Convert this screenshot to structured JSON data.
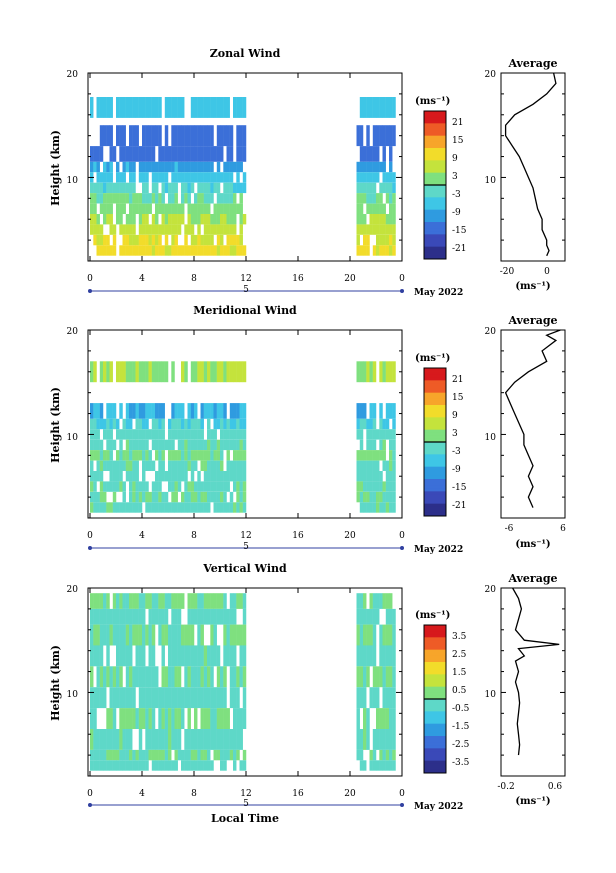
{
  "colors": {
    "scale": [
      "#2c2f8a",
      "#3a49b8",
      "#3b6fd8",
      "#2f9be0",
      "#3ec6e6",
      "#5ed8c8",
      "#7fe07f",
      "#c4e33c",
      "#f2dc2a",
      "#f7a52a",
      "#ee5b26",
      "#d7191c"
    ],
    "axis": "#000000",
    "timeline": "#3040a0"
  },
  "panels": [
    {
      "title": "Zonal Wind",
      "ylabel": "Height (km)",
      "y_ticks": [
        "20",
        "10"
      ],
      "x_ticks": [
        "0",
        "4",
        "8",
        "12",
        "16",
        "20",
        "0"
      ],
      "day_label": "5",
      "date_label": "May 2022",
      "colorbar_unit": "(ms⁻¹)",
      "colorbar_ticks": [
        "21",
        "15",
        "9",
        "3",
        "-3",
        "-9",
        "-15",
        "-21"
      ],
      "avg_title": "Average",
      "avg_y_ticks": [
        "20",
        "10"
      ],
      "avg_x_ticks": [
        "-20",
        "0"
      ],
      "avg_unit": "(ms⁻¹)"
    },
    {
      "title": "Meridional Wind",
      "ylabel": "Height (km)",
      "y_ticks": [
        "20",
        "10"
      ],
      "x_ticks": [
        "0",
        "4",
        "8",
        "12",
        "16",
        "20",
        "0"
      ],
      "day_label": "5",
      "date_label": "May 2022",
      "colorbar_unit": "(ms⁻¹)",
      "colorbar_ticks": [
        "21",
        "15",
        "9",
        "3",
        "-3",
        "-9",
        "-15",
        "-21"
      ],
      "avg_title": "Average",
      "avg_y_ticks": [
        "20",
        "10"
      ],
      "avg_x_ticks": [
        "-6",
        "6"
      ],
      "avg_unit": "(ms⁻¹)"
    },
    {
      "title": "Vertical Wind",
      "ylabel": "Height (km)",
      "y_ticks": [
        "20",
        "10"
      ],
      "x_ticks": [
        "0",
        "4",
        "8",
        "12",
        "16",
        "20",
        "0"
      ],
      "day_label": "5",
      "date_label": "May 2022",
      "colorbar_unit": "(ms⁻¹)",
      "colorbar_ticks": [
        "3.5",
        "2.5",
        "1.5",
        "0.5",
        "-0.5",
        "-1.5",
        "-2.5",
        "-3.5"
      ],
      "avg_title": "Average",
      "avg_y_ticks": [
        "20",
        "10"
      ],
      "avg_x_ticks": [
        "-0.2",
        "0.6"
      ],
      "avg_unit": "(ms⁻¹)",
      "xlabel": "Local Time"
    }
  ],
  "chart_data": [
    {
      "type": "heatmap",
      "title": "Zonal Wind",
      "ylabel": "Height (km)",
      "x_range_hours": [
        0,
        24
      ],
      "y_range_km": [
        2,
        20
      ],
      "data_time_blocks_hours": [
        [
          0,
          12
        ],
        [
          20.5,
          23.5
        ]
      ],
      "colorbar_range": [
        -24,
        24
      ],
      "rows": [
        {
          "height": 17.2,
          "v": -6
        },
        {
          "height": 14.5,
          "v": -14
        },
        {
          "height": 12.5,
          "v": -14
        },
        {
          "height": 11.0,
          "v": -9
        },
        {
          "height": 10.0,
          "v": -6
        },
        {
          "height": 9.0,
          "v": -3
        },
        {
          "height": 8.0,
          "v": 0
        },
        {
          "height": 7.0,
          "v": 2
        },
        {
          "height": 6.0,
          "v": 4
        },
        {
          "height": 5.0,
          "v": 6
        },
        {
          "height": 4.0,
          "v": 8
        },
        {
          "height": 3.0,
          "v": 9
        }
      ]
    },
    {
      "type": "line",
      "title": "Average",
      "xlabel": "(ms⁻¹)",
      "xlim": [
        -20,
        8
      ],
      "ylim": [
        2,
        20
      ],
      "x": [
        3,
        4,
        0,
        -6,
        -14,
        -18,
        -18,
        -15,
        -12,
        -10,
        -8,
        -6,
        -5,
        -4,
        -2,
        -2,
        0,
        0,
        1,
        0
      ],
      "y": [
        20,
        19,
        18,
        17,
        16,
        15,
        14,
        13,
        12,
        11,
        10,
        9,
        8,
        7,
        6,
        5,
        4,
        3.5,
        3,
        2.5
      ]
    },
    {
      "type": "heatmap",
      "title": "Meridional Wind",
      "ylabel": "Height (km)",
      "x_range_hours": [
        0,
        24
      ],
      "y_range_km": [
        2,
        20
      ],
      "data_time_blocks_hours": [
        [
          0,
          12
        ],
        [
          20.5,
          23.5
        ]
      ],
      "colorbar_range": [
        -24,
        24
      ],
      "rows": [
        {
          "height": 16.5,
          "v": 4
        },
        {
          "height": 12.5,
          "v": -8
        },
        {
          "height": 11.0,
          "v": -4
        },
        {
          "height": 10.0,
          "v": -2
        },
        {
          "height": 9.0,
          "v": -1
        },
        {
          "height": 8.0,
          "v": 1
        },
        {
          "height": 7.0,
          "v": -1
        },
        {
          "height": 6.0,
          "v": -2
        },
        {
          "height": 5.0,
          "v": -1
        },
        {
          "height": 4.0,
          "v": 0
        },
        {
          "height": 3.0,
          "v": -1
        }
      ]
    },
    {
      "type": "line",
      "title": "Average",
      "xlabel": "(ms⁻¹)",
      "xlim": [
        -8,
        6
      ],
      "ylim": [
        2,
        20
      ],
      "x": [
        5,
        2,
        4,
        1,
        2,
        -2,
        -5,
        -7,
        -6,
        -5,
        -4,
        -3,
        -3,
        -2,
        -1,
        -2,
        -1,
        -2,
        -1
      ],
      "y": [
        20,
        19.5,
        19,
        18,
        17,
        16,
        15,
        14,
        13,
        12,
        11,
        10,
        9,
        8,
        7,
        6,
        5,
        4,
        3
      ]
    },
    {
      "type": "heatmap",
      "title": "Vertical Wind",
      "ylabel": "Height (km)",
      "xlabel": "Local Time",
      "x_range_hours": [
        0,
        24
      ],
      "y_range_km": [
        2,
        20
      ],
      "data_time_blocks_hours": [
        [
          0,
          12
        ],
        [
          20.5,
          23.5
        ]
      ],
      "colorbar_range": [
        -4,
        4
      ],
      "rows": [
        {
          "height": 19.0,
          "v": 0
        },
        {
          "height": 17.5,
          "v": -0.3
        },
        {
          "height": 16.0,
          "v": 0
        },
        {
          "height": 14.0,
          "v": -0.2
        },
        {
          "height": 12.0,
          "v": 0
        },
        {
          "height": 10.0,
          "v": -0.3
        },
        {
          "height": 8.0,
          "v": 0
        },
        {
          "height": 6.0,
          "v": -0.2
        },
        {
          "height": 4.0,
          "v": 0
        },
        {
          "height": 3.0,
          "v": -0.3
        }
      ]
    },
    {
      "type": "line",
      "title": "Average",
      "xlabel": "(ms⁻¹)",
      "xlim": [
        -0.3,
        0.8
      ],
      "ylim": [
        2,
        20
      ],
      "x": [
        -0.1,
        0,
        0.05,
        0,
        -0.05,
        0.1,
        0.7,
        0,
        0.1,
        -0.05,
        0,
        -0.05,
        0,
        0.02,
        0,
        -0.02,
        0,
        0.02,
        0
      ],
      "y": [
        20,
        19,
        18,
        17,
        16,
        15,
        14.6,
        14.2,
        13.5,
        13,
        12,
        11,
        10,
        9,
        8,
        7,
        6,
        5,
        4
      ]
    }
  ]
}
